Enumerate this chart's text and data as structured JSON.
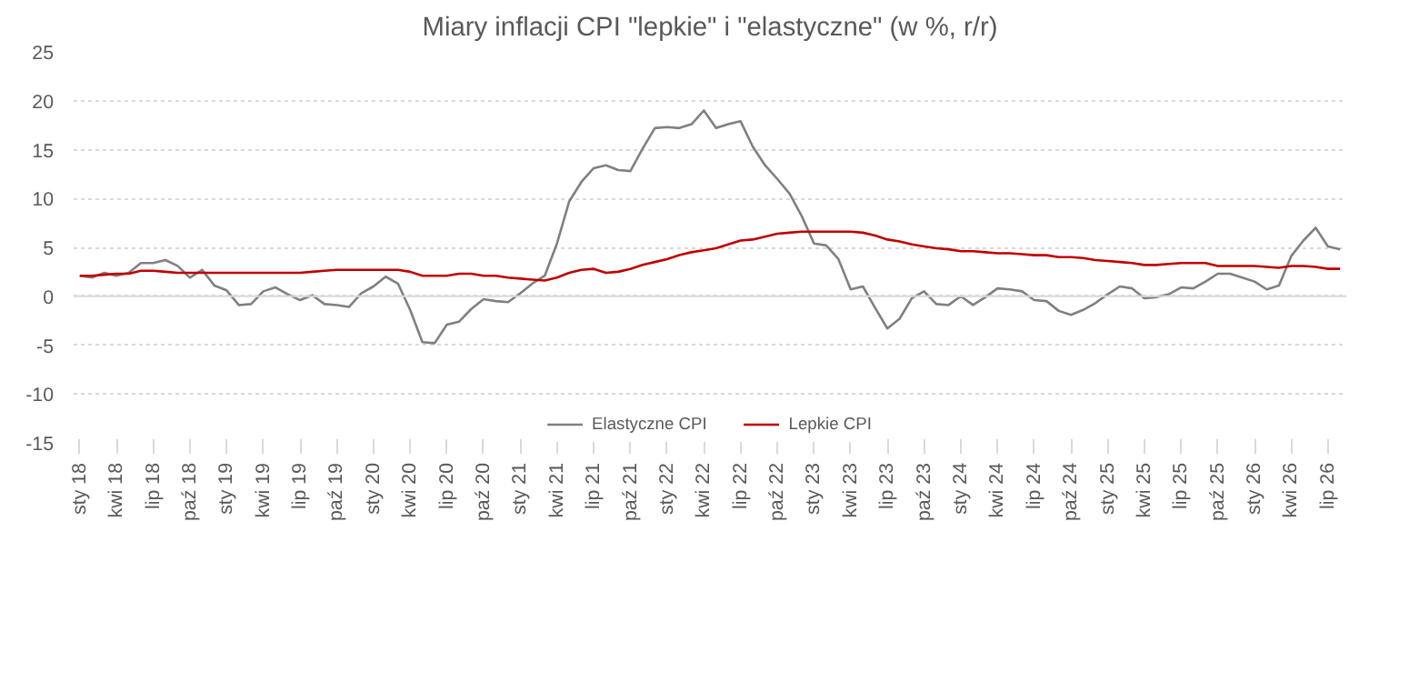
{
  "chart_data": {
    "type": "line",
    "title": "Miary inflacji CPI \"lepkie\" i \"elastyczne\" (w %, r/r)",
    "categories": [
      "sty 18",
      null,
      null,
      "kwi 18",
      null,
      null,
      "lip 18",
      null,
      null,
      "paź 18",
      null,
      null,
      "sty 19",
      null,
      null,
      "kwi 19",
      null,
      null,
      "lip 19",
      null,
      null,
      "paź 19",
      null,
      null,
      "sty 20",
      null,
      null,
      "kwi 20",
      null,
      null,
      "lip 20",
      null,
      null,
      "paź 20",
      null,
      null,
      "sty 21",
      null,
      null,
      "kwi 21",
      null,
      null,
      "lip 21",
      null,
      null,
      "paź 21",
      null,
      null,
      "sty 22",
      null,
      null,
      "kwi 22",
      null,
      null,
      "lip 22",
      null,
      null,
      "paź 22",
      null,
      null,
      "sty 23",
      null,
      null,
      "kwi 23",
      null,
      null,
      "lip 23",
      null,
      null,
      "paź 23",
      null,
      null,
      "sty 24",
      null,
      null,
      "kwi 24",
      null,
      null,
      "lip 24",
      null,
      null,
      "paź 24",
      null,
      null,
      "sty 25",
      null,
      null,
      "kwi 25",
      null,
      null,
      "lip 25",
      null,
      null,
      "paź 25",
      null,
      null,
      "sty 26",
      null,
      null,
      "kwi 26",
      null,
      null,
      "lip 26",
      null
    ],
    "series": [
      {
        "name": "Elastyczne CPI",
        "color": "#808080",
        "values": [
          2.1,
          1.9,
          2.4,
          2.1,
          2.4,
          3.4,
          3.4,
          3.7,
          3.1,
          1.9,
          2.7,
          1.1,
          0.6,
          -0.9,
          -0.8,
          0.5,
          0.9,
          0.2,
          -0.4,
          0.1,
          -0.8,
          -0.9,
          -1.1,
          0.3,
          1.0,
          2.0,
          1.3,
          -1.4,
          -4.7,
          -4.8,
          -2.9,
          -2.6,
          -1.3,
          -0.3,
          -0.5,
          -0.6,
          0.3,
          1.3,
          2.1,
          5.4,
          9.7,
          11.7,
          13.1,
          13.4,
          12.9,
          12.8,
          15.1,
          17.2,
          17.3,
          17.2,
          17.6,
          19.0,
          17.2,
          17.6,
          17.9,
          15.3,
          13.4,
          12.0,
          10.5,
          8.2,
          5.4,
          5.2,
          3.8,
          0.7,
          1.0,
          -1.2,
          -3.3,
          -2.3,
          -0.2,
          0.5,
          -0.8,
          -0.9,
          0,
          -0.9,
          -0.1,
          0.8,
          0.7,
          0.5,
          -0.4,
          -0.5,
          -1.5,
          -1.9,
          -1.4,
          -0.7,
          0.2,
          1.0,
          0.8,
          -0.2,
          -0.1,
          0.2,
          0.9,
          0.8,
          1.5,
          2.3,
          2.3,
          1.9,
          1.5,
          0.7,
          1.1,
          4.1,
          5.7,
          7.0,
          5.1,
          4.8
        ]
      },
      {
        "name": "Lepkie CPI",
        "color": "#c00000",
        "values": [
          2.1,
          2.1,
          2.2,
          2.3,
          2.3,
          2.6,
          2.6,
          2.5,
          2.4,
          2.4,
          2.4,
          2.4,
          2.4,
          2.4,
          2.4,
          2.4,
          2.4,
          2.4,
          2.4,
          2.5,
          2.6,
          2.7,
          2.7,
          2.7,
          2.7,
          2.7,
          2.7,
          2.5,
          2.1,
          2.1,
          2.1,
          2.3,
          2.3,
          2.1,
          2.1,
          1.9,
          1.8,
          1.7,
          1.6,
          1.9,
          2.4,
          2.7,
          2.8,
          2.4,
          2.5,
          2.8,
          3.2,
          3.5,
          3.8,
          4.2,
          4.5,
          4.7,
          4.9,
          5.3,
          5.7,
          5.8,
          6.1,
          6.4,
          6.5,
          6.6,
          6.6,
          6.6,
          6.6,
          6.6,
          6.5,
          6.2,
          5.8,
          5.6,
          5.3,
          5.1,
          4.9,
          4.8,
          4.6,
          4.6,
          4.5,
          4.4,
          4.4,
          4.3,
          4.2,
          4.2,
          4.0,
          4.0,
          3.9,
          3.7,
          3.6,
          3.5,
          3.4,
          3.2,
          3.2,
          3.3,
          3.4,
          3.4,
          3.4,
          3.1,
          3.1,
          3.1,
          3.1,
          3.0,
          2.9,
          3.1,
          3.1,
          3.0,
          2.8,
          2.8
        ]
      }
    ],
    "ylim": [
      -15,
      25
    ],
    "yticks": [
      -15,
      -10,
      -5,
      0,
      5,
      10,
      15,
      20,
      25
    ],
    "grid": "y",
    "legend": "bottom",
    "ref_lines": [
      {
        "axis": "y",
        "value": 0,
        "color": "#d9d9d9"
      }
    ]
  }
}
